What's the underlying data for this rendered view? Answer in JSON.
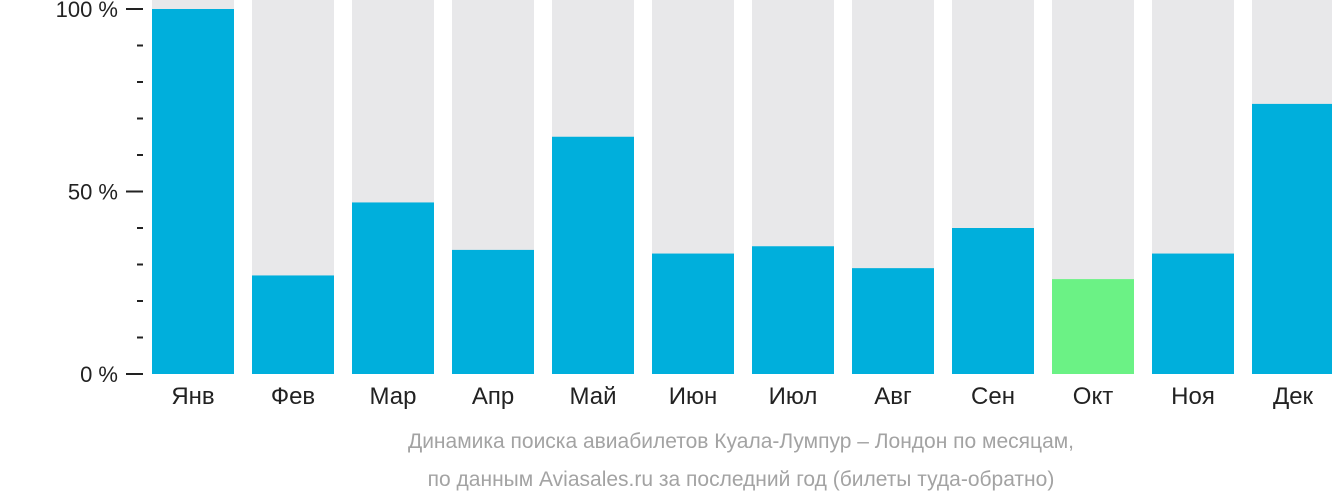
{
  "chart_data": {
    "type": "bar",
    "categories": [
      "Янв",
      "Фев",
      "Мар",
      "Апр",
      "Май",
      "Июн",
      "Июл",
      "Авг",
      "Сен",
      "Окт",
      "Ноя",
      "Дек"
    ],
    "values": [
      100,
      27,
      47,
      34,
      65,
      33,
      35,
      29,
      40,
      26,
      33,
      74
    ],
    "highlight_index": 9,
    "yticks": [
      "0 %",
      "50 %",
      "100 %"
    ],
    "ylim": [
      0,
      100
    ],
    "grid": false,
    "colors": {
      "bar": "#00afdc",
      "highlight": "#6bf285",
      "background_bar": "#e8e8ea",
      "axis": "#222222",
      "caption": "#a3a3a3"
    }
  },
  "caption": {
    "line1": "Динамика поиска авиабилетов Куала-Лумпур – Лондон по месяцам,",
    "line2": "по данным Aviasales.ru за последний год (билеты туда-обратно)"
  }
}
